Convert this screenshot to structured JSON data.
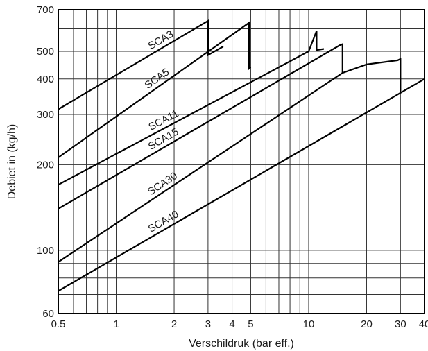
{
  "chart_data": {
    "type": "line",
    "title": "",
    "xlabel": "Verschildruk (bar eff.)",
    "ylabel": "Debiet in (kg/h)",
    "xscale": "log",
    "yscale": "log",
    "xlim": [
      0.5,
      40
    ],
    "ylim": [
      60,
      700
    ],
    "grid": true,
    "legend": "none",
    "x_ticks": [
      {
        "value": 0.5,
        "label": "0.5"
      },
      {
        "value": 1,
        "label": "1"
      },
      {
        "value": 2,
        "label": "2"
      },
      {
        "value": 3,
        "label": "3"
      },
      {
        "value": 4,
        "label": "4"
      },
      {
        "value": 5,
        "label": "5"
      },
      {
        "value": 10,
        "label": "10"
      },
      {
        "value": 20,
        "label": "20"
      },
      {
        "value": 30,
        "label": "30"
      },
      {
        "value": 40,
        "label": "40"
      }
    ],
    "y_ticks": [
      {
        "value": 60,
        "label": "60"
      },
      {
        "value": 100,
        "label": "100"
      },
      {
        "value": 200,
        "label": "200"
      },
      {
        "value": 300,
        "label": "300"
      },
      {
        "value": 400,
        "label": "400"
      },
      {
        "value": 500,
        "label": "500"
      },
      {
        "value": 700,
        "label": "700"
      }
    ],
    "x_grid": [
      0.5,
      0.6,
      0.7,
      0.8,
      0.9,
      1,
      2,
      3,
      4,
      5,
      6,
      7,
      8,
      9,
      10,
      20,
      30,
      40
    ],
    "y_grid": [
      60,
      70,
      80,
      90,
      100,
      200,
      300,
      400,
      500,
      600,
      700
    ],
    "series": [
      {
        "name": "SCA3",
        "x": [
          0.5,
          3,
          3,
          3.6
        ],
        "y": [
          313,
          640,
          485,
          520
        ]
      },
      {
        "name": "SCA5",
        "x": [
          0.5,
          4.9,
          4.9,
          5
        ],
        "y": [
          212,
          630,
          435,
          440
        ]
      },
      {
        "name": "SCA11",
        "x": [
          0.5,
          10,
          11,
          11,
          12
        ],
        "y": [
          170,
          500,
          590,
          505,
          510
        ]
      },
      {
        "name": "SCA15",
        "x": [
          0.5,
          14.5,
          15,
          15
        ],
        "y": [
          140,
          525,
          530,
          420
        ]
      },
      {
        "name": "SCA30",
        "x": [
          0.5,
          15,
          20,
          29,
          30,
          30
        ],
        "y": [
          91,
          420,
          450,
          465,
          470,
          360
        ]
      },
      {
        "name": "SCA40",
        "x": [
          0.5,
          40
        ],
        "y": [
          72,
          400
        ]
      }
    ]
  }
}
